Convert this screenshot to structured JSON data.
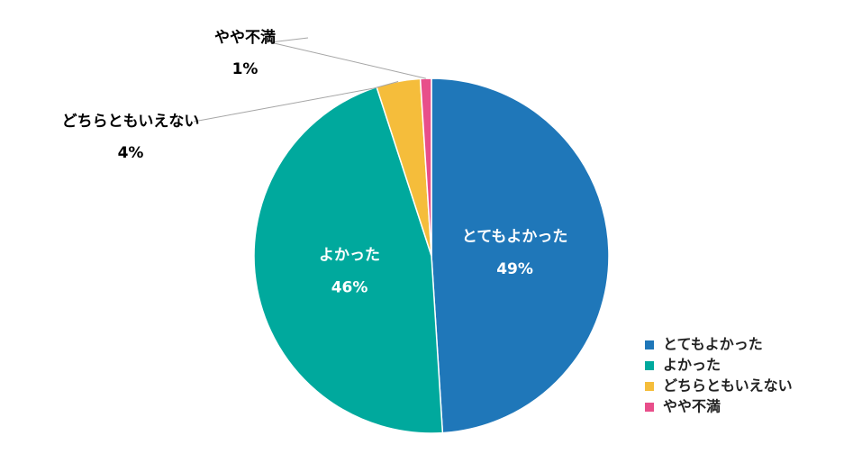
{
  "chart_data": {
    "type": "pie",
    "categories": [
      "とてもよかった",
      "よかった",
      "どちらともいえない",
      "やや不満"
    ],
    "values": [
      49,
      46,
      4,
      1
    ],
    "value_labels": [
      "49%",
      "46%",
      "4%",
      "1%"
    ],
    "colors": [
      "#1f77b9",
      "#00a99d",
      "#f5bd3b",
      "#e84e8a"
    ],
    "legend": "lower right"
  }
}
